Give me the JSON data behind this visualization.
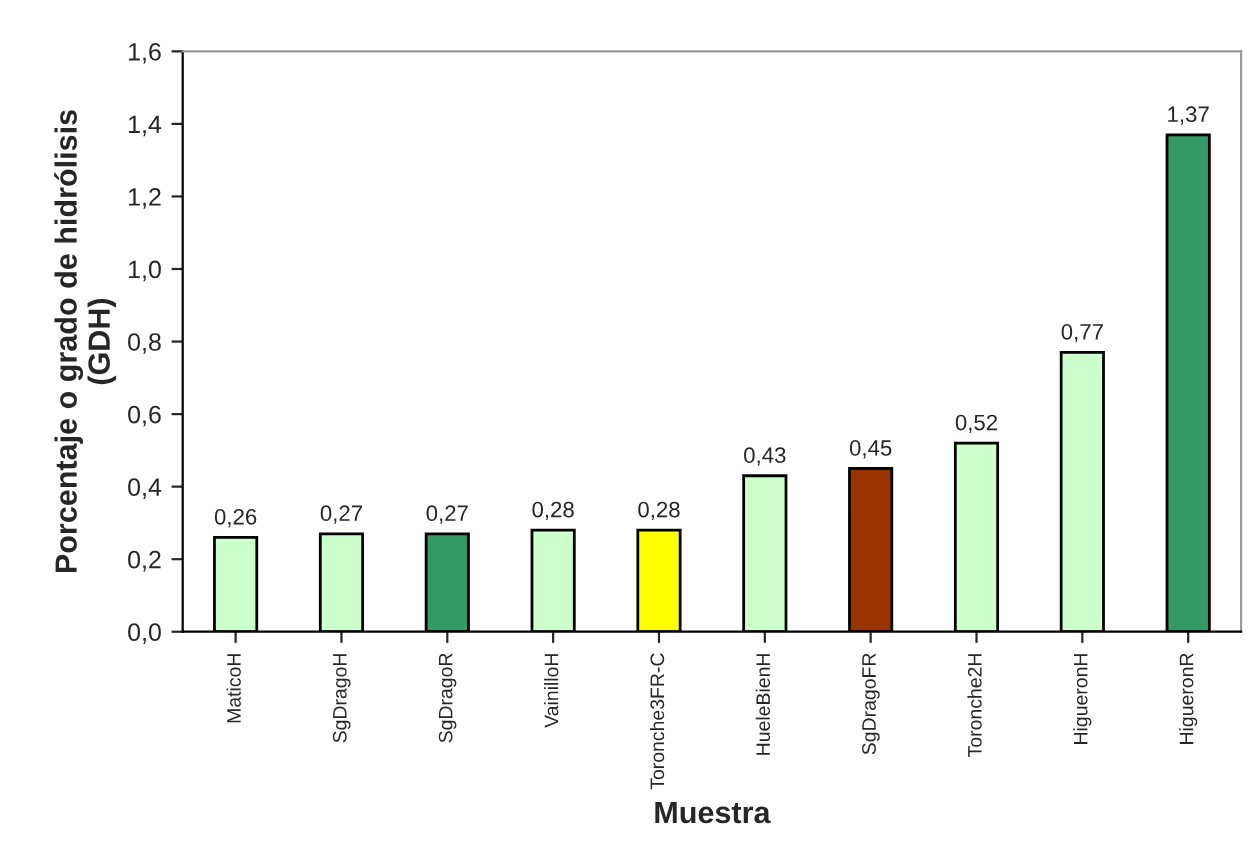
{
  "chart_data": {
    "type": "bar",
    "xlabel": "Muestra",
    "ylabel": "Porcentaje o grado de hidrólisis\n(GDH)",
    "categories": [
      "MaticoH",
      "SgDragoH",
      "SgDragoR",
      "VainilloH",
      "Toronche3FR-C",
      "HueleBienH",
      "SgDragoFR",
      "Toronche2H",
      "HigueronH",
      "HigueronR"
    ],
    "values": [
      0.26,
      0.27,
      0.27,
      0.28,
      0.28,
      0.43,
      0.45,
      0.52,
      0.77,
      1.37
    ],
    "value_labels": [
      "0,26",
      "0,27",
      "0,27",
      "0,28",
      "0,28",
      "0,43",
      "0,45",
      "0,52",
      "0,77",
      "1,37"
    ],
    "colors": [
      "#ccffcc",
      "#ccffcc",
      "#339966",
      "#ccffcc",
      "#ffff00",
      "#ccffcc",
      "#993300",
      "#ccffcc",
      "#ccffcc",
      "#339966"
    ],
    "ylim": [
      0,
      1.6
    ],
    "yticks": [
      {
        "value": 0,
        "label": "0,0"
      },
      {
        "value": 0.2,
        "label": "0,2"
      },
      {
        "value": 0.4,
        "label": "0,4"
      },
      {
        "value": 0.6,
        "label": "0,6"
      },
      {
        "value": 0.8,
        "label": "0,8"
      },
      {
        "value": 1.0,
        "label": "1,0"
      },
      {
        "value": 1.2,
        "label": "1,2"
      },
      {
        "value": 1.4,
        "label": "1,4"
      },
      {
        "value": 1.6,
        "label": "1,6"
      }
    ],
    "grid": false,
    "legend": false
  }
}
